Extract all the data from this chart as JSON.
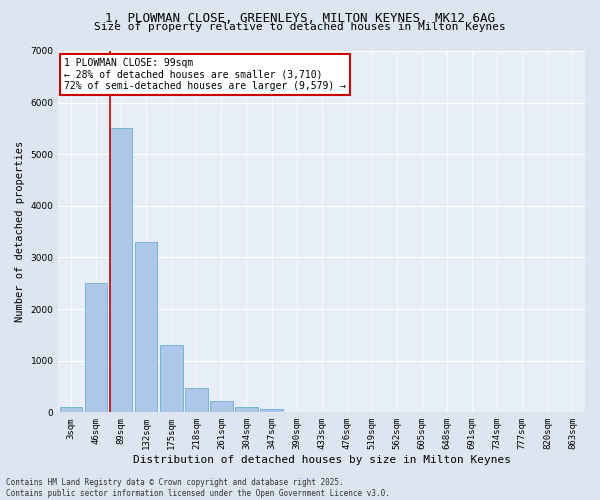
{
  "title_line1": "1, PLOWMAN CLOSE, GREENLEYS, MILTON KEYNES, MK12 6AG",
  "title_line2": "Size of property relative to detached houses in Milton Keynes",
  "xlabel": "Distribution of detached houses by size in Milton Keynes",
  "ylabel": "Number of detached properties",
  "categories": [
    "3sqm",
    "46sqm",
    "89sqm",
    "132sqm",
    "175sqm",
    "218sqm",
    "261sqm",
    "304sqm",
    "347sqm",
    "390sqm",
    "433sqm",
    "476sqm",
    "519sqm",
    "562sqm",
    "605sqm",
    "648sqm",
    "691sqm",
    "734sqm",
    "777sqm",
    "820sqm",
    "863sqm"
  ],
  "values": [
    100,
    2500,
    5500,
    3300,
    1300,
    480,
    220,
    100,
    60,
    0,
    0,
    0,
    0,
    0,
    0,
    0,
    0,
    0,
    0,
    0,
    0
  ],
  "bar_color": "#aec6e8",
  "bar_edge_color": "#6aaed6",
  "vline_x_index": 2,
  "vline_color": "#cc0000",
  "ylim": [
    0,
    7000
  ],
  "yticks": [
    0,
    1000,
    2000,
    3000,
    4000,
    5000,
    6000,
    7000
  ],
  "annotation_text": "1 PLOWMAN CLOSE: 99sqm\n← 28% of detached houses are smaller (3,710)\n72% of semi-detached houses are larger (9,579) →",
  "annotation_box_color": "#ffffff",
  "annotation_box_edge_color": "#cc0000",
  "footer_text": "Contains HM Land Registry data © Crown copyright and database right 2025.\nContains public sector information licensed under the Open Government Licence v3.0.",
  "bg_color": "#dde5f0",
  "plot_bg_color": "#e8eef8",
  "grid_color": "#ffffff",
  "font_family": "monospace",
  "title_fontsize": 9,
  "subtitle_fontsize": 8,
  "ylabel_fontsize": 7.5,
  "xlabel_fontsize": 8,
  "tick_fontsize": 6.5,
  "annot_fontsize": 7
}
